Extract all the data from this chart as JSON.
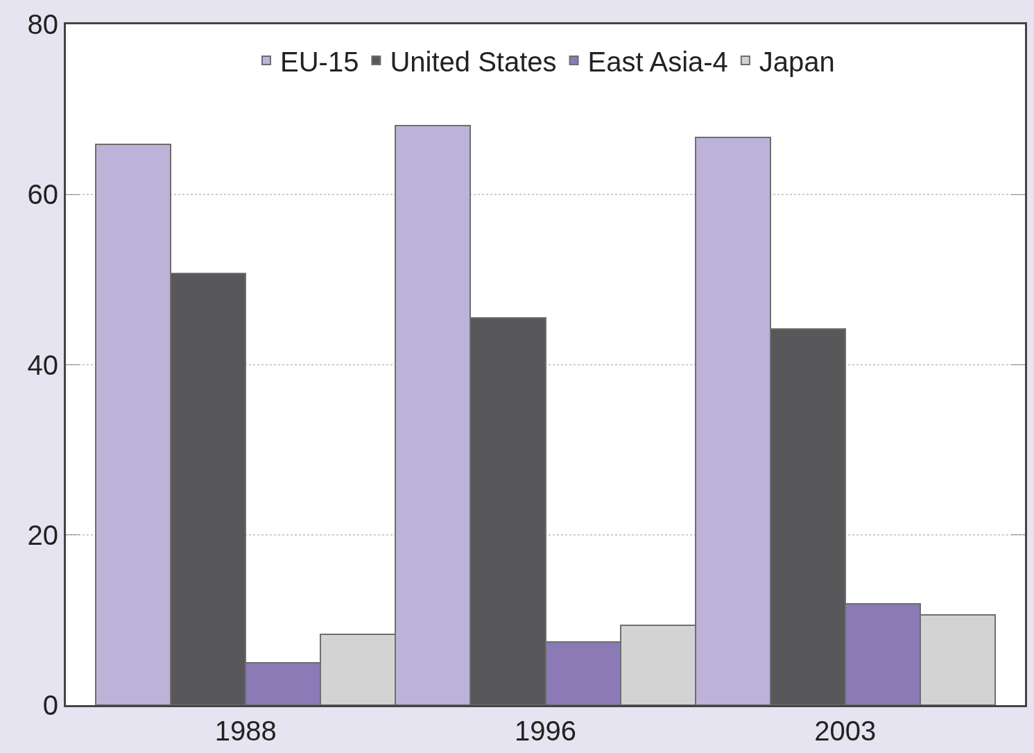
{
  "chart_data": {
    "type": "bar",
    "categories": [
      "1988",
      "1996",
      "2003"
    ],
    "series": [
      {
        "name": "EU-15",
        "color": "#bdb3d9",
        "values": [
          65.9,
          68.1,
          66.7
        ]
      },
      {
        "name": "United States",
        "color": "#58585a",
        "values": [
          50.7,
          45.5,
          44.2
        ]
      },
      {
        "name": "East Asia-4",
        "color": "#8b7ab5",
        "values": [
          5.0,
          7.4,
          11.9
        ]
      },
      {
        "name": "Japan",
        "color": "#d3d3d3",
        "values": [
          8.3,
          9.4,
          10.6
        ]
      }
    ],
    "ylim": [
      0,
      80
    ],
    "yticks": [
      0,
      20,
      40,
      60,
      80
    ],
    "grid": "y",
    "legend": "top"
  }
}
